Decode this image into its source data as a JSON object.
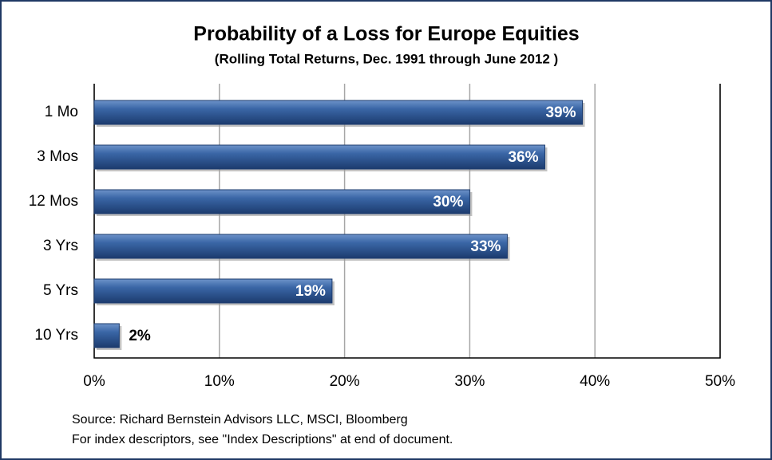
{
  "chart_data": {
    "type": "bar",
    "orientation": "horizontal",
    "title": "Probability of a Loss for Europe Equities",
    "subtitle": "(Rolling Total Returns, Dec. 1991 through June 2012 )",
    "categories": [
      "1 Mo",
      "3 Mos",
      "12 Mos",
      "3 Yrs",
      "5 Yrs",
      "10 Yrs"
    ],
    "values": [
      39,
      36,
      30,
      33,
      19,
      2
    ],
    "value_labels": [
      "39%",
      "36%",
      "30%",
      "33%",
      "19%",
      "2%"
    ],
    "color": "#2e5a99",
    "xlim": [
      0,
      50
    ],
    "xticks": [
      {
        "value": 0,
        "label": "0%"
      },
      {
        "value": 10,
        "label": "10%"
      },
      {
        "value": 20,
        "label": "20%"
      },
      {
        "value": 30,
        "label": "30%"
      },
      {
        "value": 40,
        "label": "40%"
      },
      {
        "value": 50,
        "label": "50%"
      }
    ],
    "grid": true,
    "notes": [
      "Source: Richard Bernstein Advisors LLC, MSCI, Bloomberg",
      "For index descriptors, see \"Index Descriptions\" at end of document."
    ]
  }
}
